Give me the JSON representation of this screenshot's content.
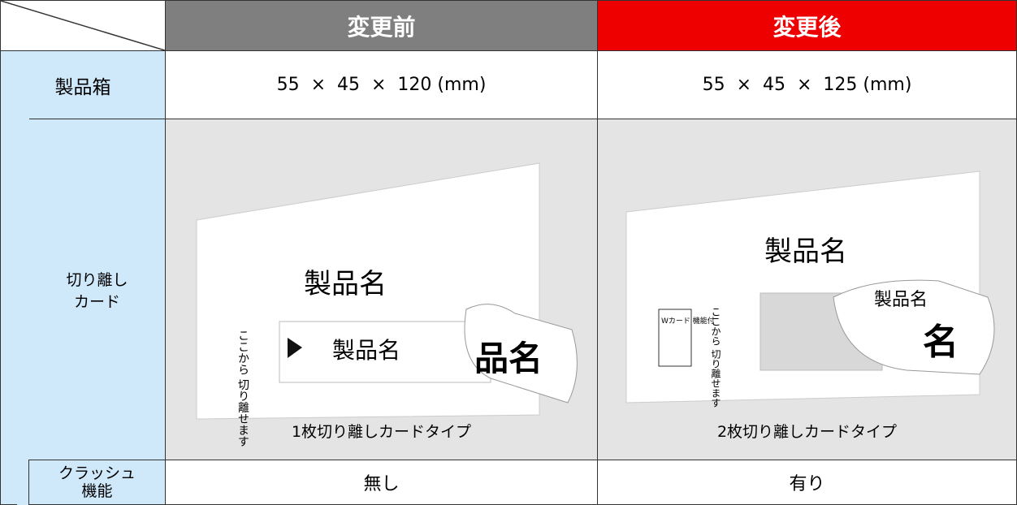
{
  "header": {
    "before": "変更前",
    "after": "変更後"
  },
  "rows": [
    {
      "label": "製品箱",
      "before": "55  ×  45  ×  120 (mm)",
      "after": "55  ×  45  ×  125 (mm)"
    },
    {
      "label": "切り離し\nカード",
      "before": {
        "caption": "1枚切り離しカードタイプ",
        "card_title": "製品名",
        "tab_title": "製品名",
        "tear_text": "ここから\n切り離せます",
        "curl_text": "品名"
      },
      "after": {
        "caption": "2枚切り離しカードタイプ",
        "card_title": "製品名",
        "badge": "Wカード\n機能付",
        "tear_text": "ここから\n切り離せます",
        "curl_text": "製品名",
        "curl_big": "名"
      }
    },
    {
      "label": "クラッシュ\n機能",
      "before": "無し",
      "after": "有り"
    }
  ]
}
